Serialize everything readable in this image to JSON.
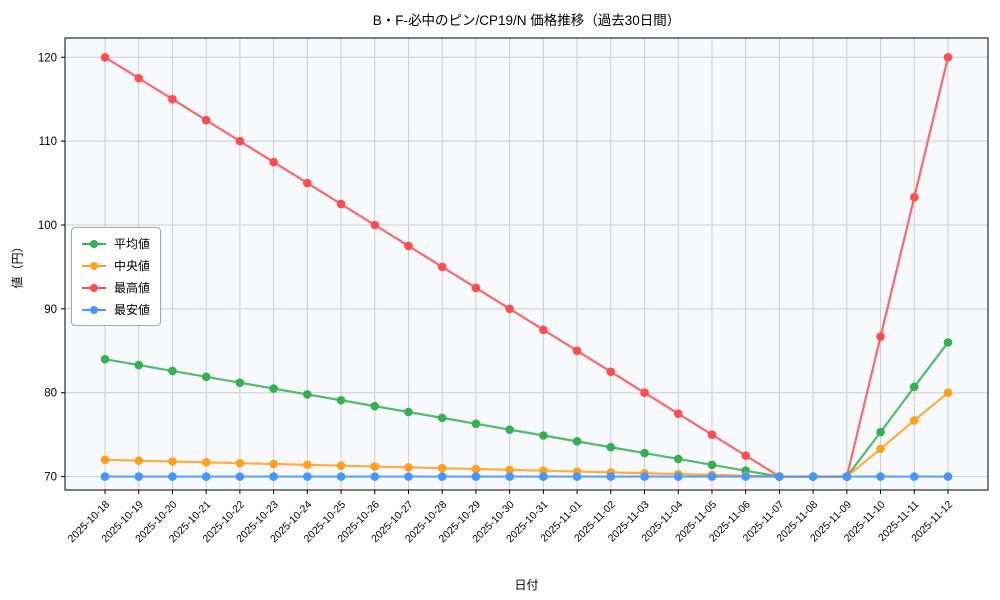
{
  "chart_data": {
    "type": "line",
    "title": "B・F-必中のピン/CP19/N 価格推移（過去30日間）",
    "xlabel": "日付",
    "ylabel": "値（円）",
    "grid": true,
    "legend_position": "center-left",
    "ylim": [
      68.4,
      122.3
    ],
    "yticks": [
      70,
      80,
      90,
      100,
      110,
      120
    ],
    "x": [
      "2025-10-18",
      "2025-10-19",
      "2025-10-20",
      "2025-10-21",
      "2025-10-22",
      "2025-10-23",
      "2025-10-24",
      "2025-10-25",
      "2025-10-26",
      "2025-10-27",
      "2025-10-28",
      "2025-10-29",
      "2025-10-30",
      "2025-10-31",
      "2025-11-01",
      "2025-11-02",
      "2025-11-03",
      "2025-11-04",
      "2025-11-05",
      "2025-11-06",
      "2025-11-07",
      "2025-11-08",
      "2025-11-09",
      "2025-11-10",
      "2025-11-11",
      "2025-11-12"
    ],
    "series": [
      {
        "name": "平均値",
        "color": "#33b050",
        "values": [
          84,
          83.3,
          82.6,
          81.9,
          81.2,
          80.5,
          79.8,
          79.1,
          78.4,
          77.7,
          77.0,
          76.3,
          75.6,
          74.9,
          74.2,
          73.5,
          72.8,
          72.1,
          71.4,
          70.7,
          70,
          70,
          70,
          75.3,
          80.7,
          86
        ]
      },
      {
        "name": "中央値",
        "color": "#ffa01f",
        "values": [
          72,
          71.9,
          71.8,
          71.7,
          71.6,
          71.5,
          71.4,
          71.3,
          71.2,
          71.1,
          71.0,
          70.9,
          70.8,
          70.7,
          70.6,
          70.5,
          70.4,
          70.3,
          70.2,
          70.1,
          70,
          70,
          70,
          73.3,
          76.7,
          80
        ]
      },
      {
        "name": "最高値",
        "color": "#ff4d4f",
        "values": [
          120,
          117.5,
          115,
          112.5,
          110,
          107.5,
          105,
          102.5,
          100,
          97.5,
          95,
          92.5,
          90,
          87.5,
          85,
          82.5,
          80,
          77.5,
          75,
          72.5,
          70,
          70,
          70,
          86.7,
          103.3,
          120
        ]
      },
      {
        "name": "最安値",
        "color": "#4596ff",
        "values": [
          70,
          70,
          70,
          70,
          70,
          70,
          70,
          70,
          70,
          70,
          70,
          70,
          70,
          70,
          70,
          70,
          70,
          70,
          70,
          70,
          70,
          70,
          70,
          70,
          70,
          70
        ]
      }
    ]
  }
}
